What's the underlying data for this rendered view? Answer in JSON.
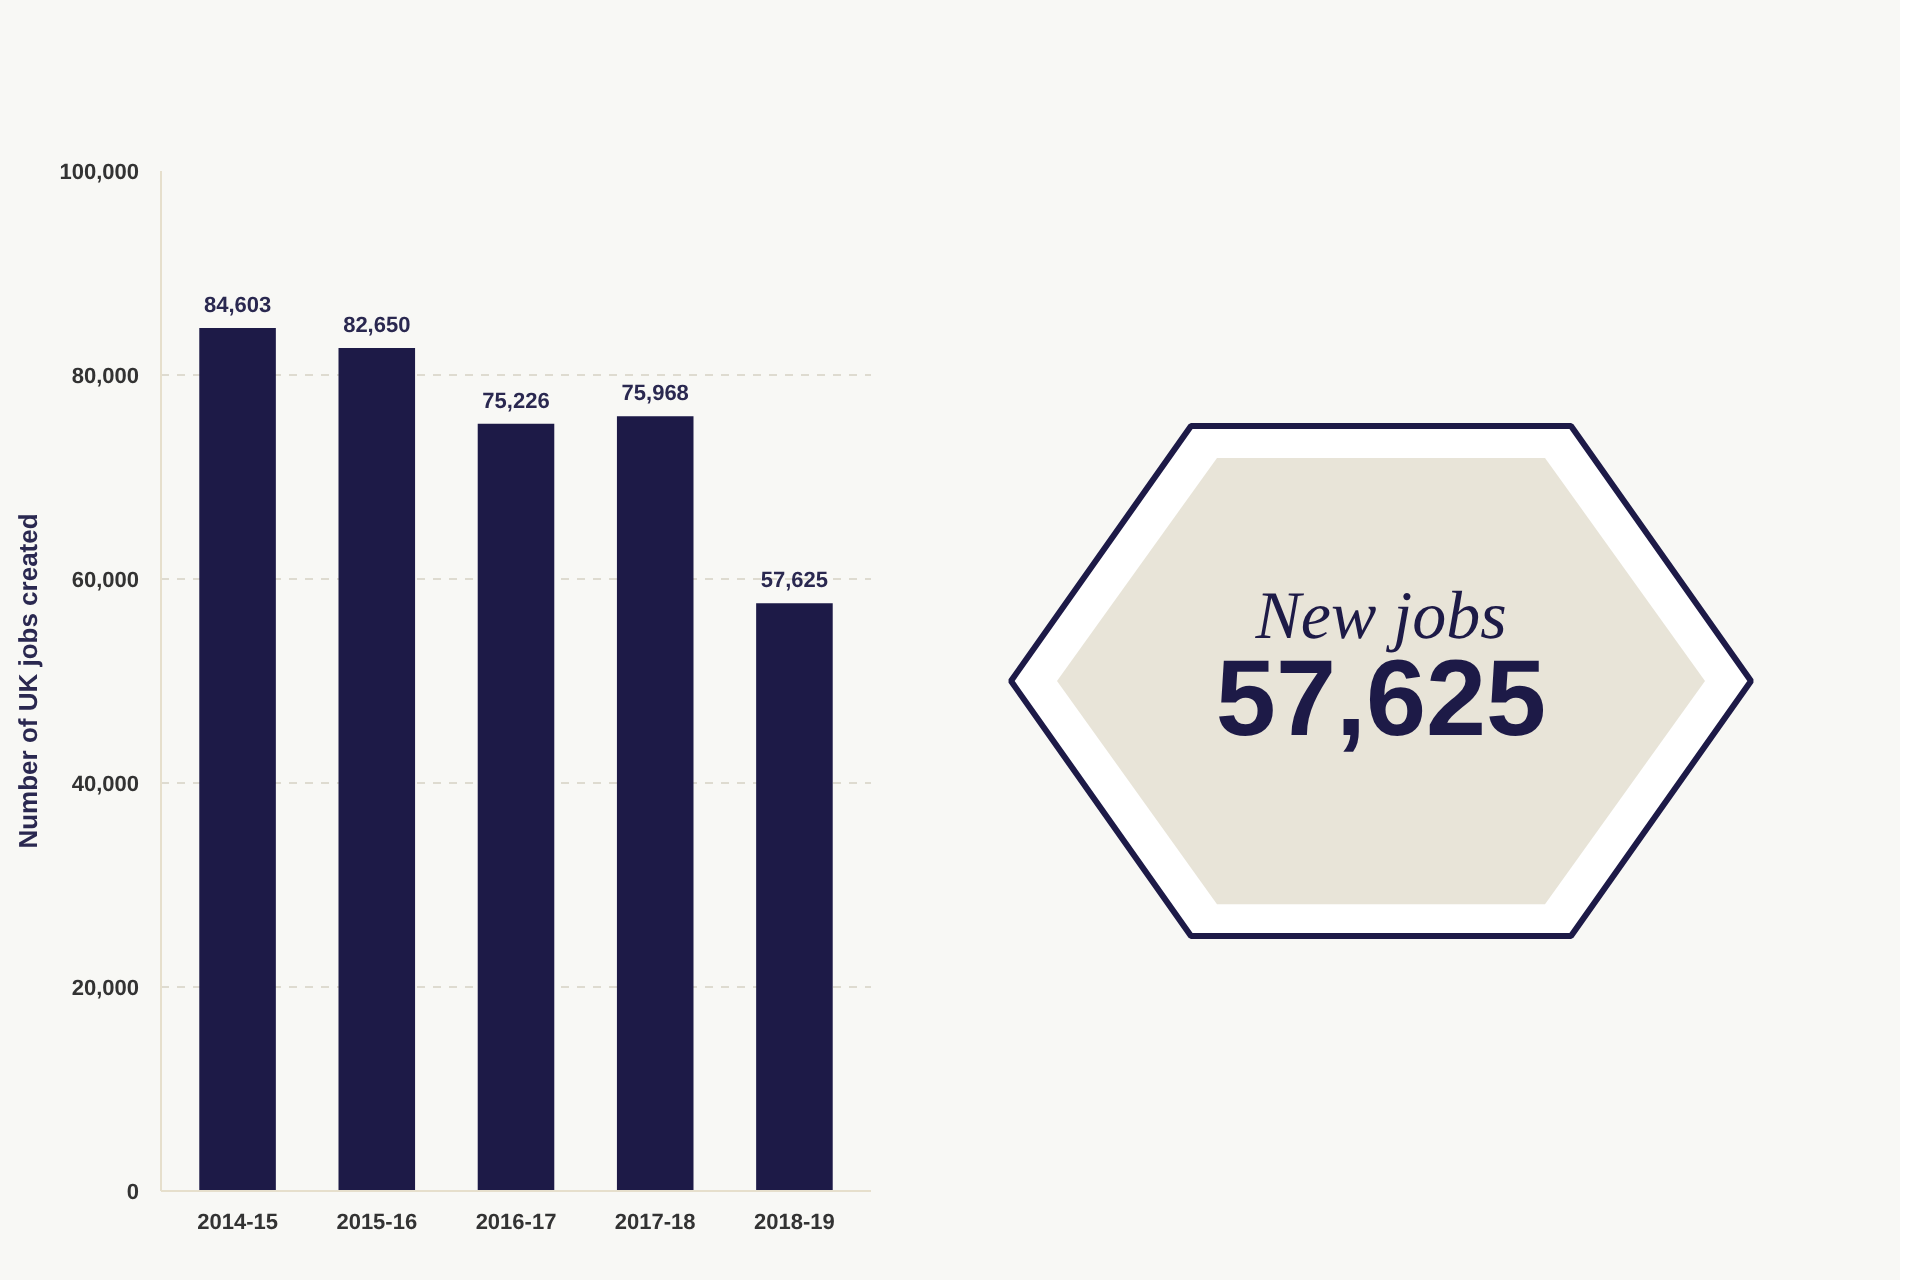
{
  "chart_data": [
    {
      "type": "bar",
      "ylabel": "Number of UK jobs created",
      "categories": [
        "2014-15",
        "2015-16",
        "2016-17",
        "2017-18",
        "2018-19"
      ],
      "values": [
        84603,
        82650,
        75226,
        75968,
        57625
      ],
      "color": "#1d1a47",
      "ylim": [
        0,
        100000
      ],
      "yticks": [
        {
          "value": 0,
          "label": "0"
        },
        {
          "value": 20000,
          "label": "20,000"
        },
        {
          "value": 40000,
          "label": "40,000"
        },
        {
          "value": 60000,
          "label": "60,000"
        },
        {
          "value": 80000,
          "label": "80,000"
        },
        {
          "value": 100000,
          "label": "100,000"
        }
      ],
      "grid": "y",
      "value_labels": [
        "84,603",
        "82,650",
        "75,226",
        "75,968",
        "57,625"
      ]
    },
    {
      "type": "other",
      "annotations": [
        "New jobs",
        "57,625"
      ]
    }
  ]
}
